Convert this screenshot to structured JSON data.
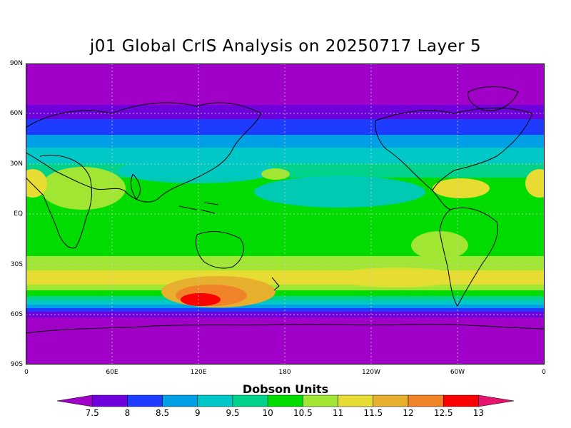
{
  "title": "j01 Global CrIS Analysis on 20250717 Layer 5",
  "colorbar": {
    "title": "Dobson Units",
    "labels": [
      "7.5",
      "8",
      "8.5",
      "9",
      "9.5",
      "10",
      "10.5",
      "11",
      "11.5",
      "12",
      "12.5",
      "13"
    ],
    "colors": [
      "#a000c8",
      "#6e00dc",
      "#1e3cff",
      "#00a0e6",
      "#00c8c8",
      "#00d28c",
      "#00dc00",
      "#a0e632",
      "#e6dc32",
      "#e6af2d",
      "#f08228",
      "#fa0000",
      "#e6146e"
    ]
  },
  "axes": {
    "lat_labels": [
      "90N",
      "60N",
      "30N",
      "EQ",
      "30S",
      "60S",
      "90S"
    ],
    "lon_labels": [
      "0",
      "60E",
      "120E",
      "180",
      "120W",
      "60W",
      "0"
    ]
  },
  "chart_data": {
    "type": "heatmap",
    "title": "j01 Global CrIS Analysis on 20250717 Layer 5",
    "xlabel": "",
    "ylabel": "",
    "colorbar_label": "Dobson Units",
    "value_range": [
      7.5,
      13
    ],
    "x_range": [
      0,
      360
    ],
    "y_range": [
      -90,
      90
    ],
    "grid": true,
    "features": [
      {
        "region": "polar north (60N-90N)",
        "value": 7.5
      },
      {
        "region": "northern midlatitudes (45N-60N)",
        "value": 8.5
      },
      {
        "region": "subtropics / tropics",
        "value": 10.5
      },
      {
        "region": "southern midlatitudes band (30S-45S)",
        "value": 11.5
      },
      {
        "region": "south of Australia maximum (~50S, 120E)",
        "value": 13
      },
      {
        "region": "antarctic (65S-90S)",
        "value": 7.5
      }
    ]
  }
}
